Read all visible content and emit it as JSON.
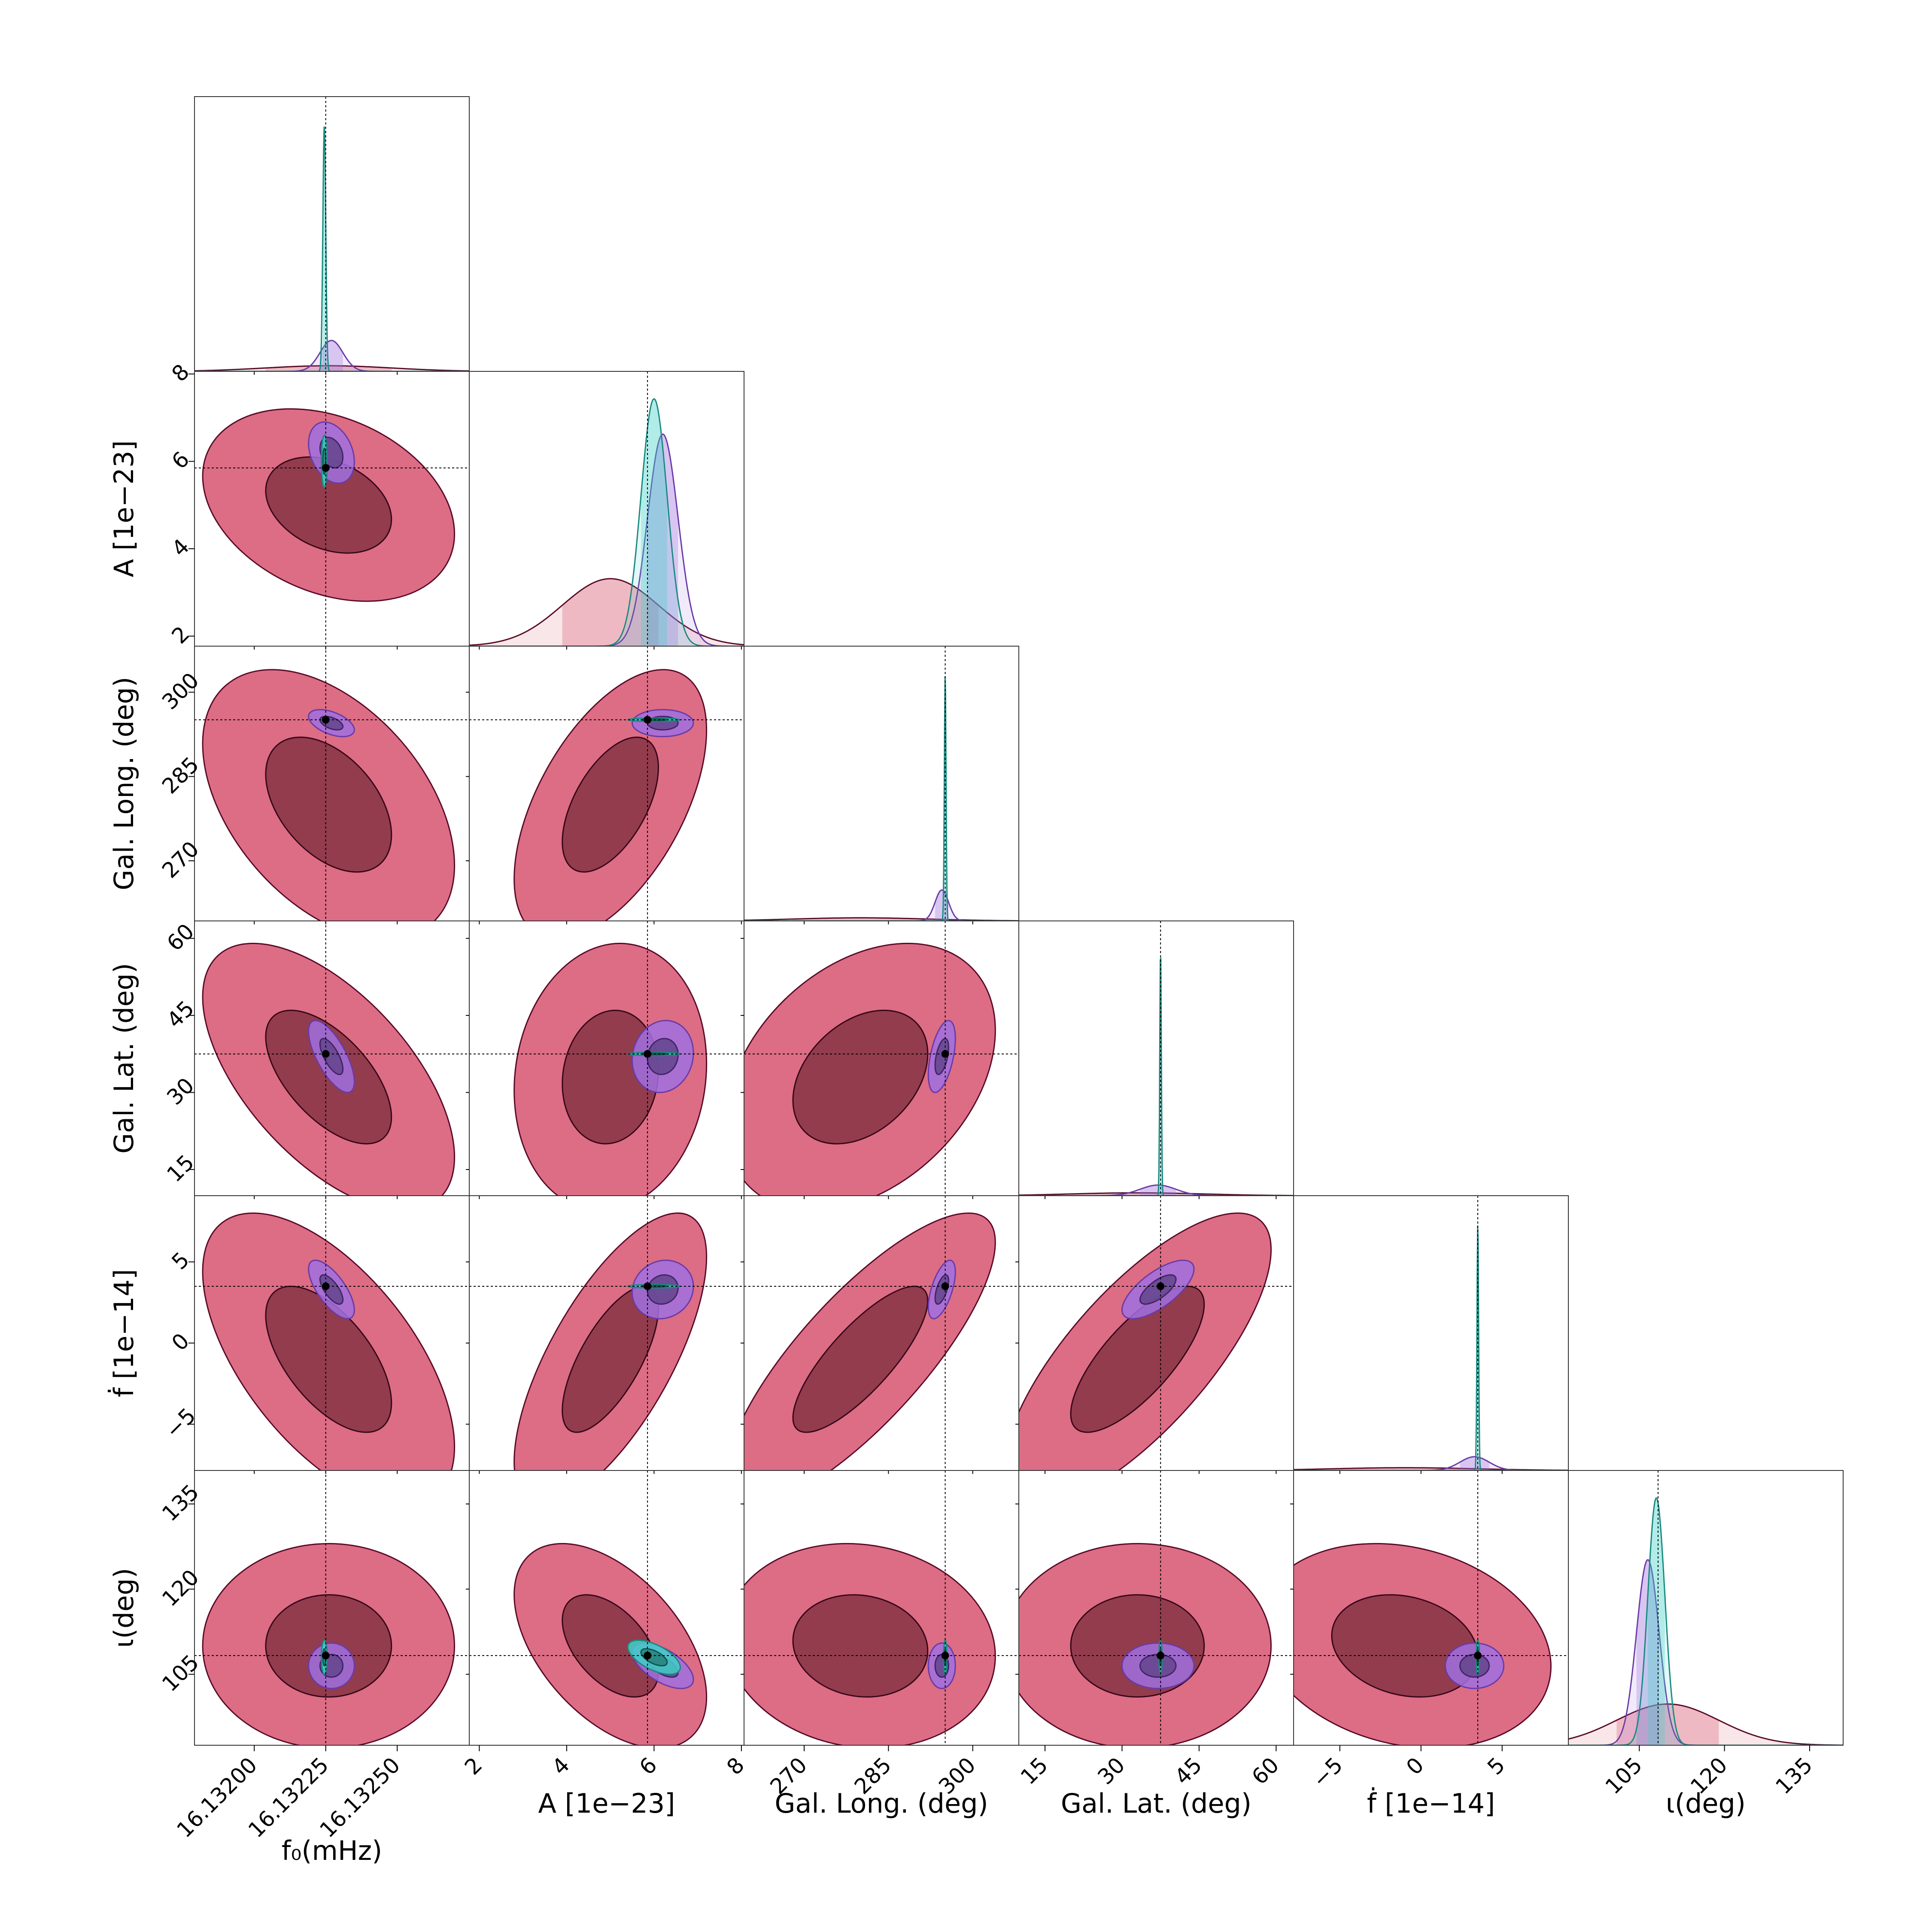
{
  "chart_data": {
    "type": "corner",
    "contour_levels": [
      0.393,
      0.865
    ],
    "parameters": [
      {
        "label": "f₀(mHz)",
        "lim": [
          16.131791,
          16.132752
        ],
        "ticks": [
          {
            "value": 16.132,
            "label": "16.13200"
          },
          16.13225,
          {
            "value": 16.1325,
            "label": "16.13250"
          }
        ],
        "truth": 16.13225
      },
      {
        "label": "A [1e−23]",
        "lim": [
          1.77,
          8.06
        ],
        "ticks": [
          2,
          4,
          6,
          8
        ],
        "truth": 5.85
      },
      {
        "label": "Gal. Long. (deg)",
        "lim": [
          259.3,
          308.2
        ],
        "ticks": [
          270,
          285,
          300
        ],
        "truth": 295.1
      },
      {
        "label": "Gal. Lat. (deg)",
        "lim": [
          9.9,
          63.4
        ],
        "ticks": [
          15,
          30,
          45,
          60
        ],
        "truth": 37.5
      },
      {
        "label": "ḟ [1e−14]",
        "lim": [
          -7.85,
          9.08
        ],
        "ticks": [
          {
            "value": -5,
            "label": "−5"
          },
          0,
          5
        ],
        "truth": 3.5
      },
      {
        "label": "ι(deg)",
        "lim": [
          92.5,
          140.9
        ],
        "ticks": [
          105,
          120,
          135
        ],
        "truth": 108.3
      }
    ],
    "series": [
      {
        "color": "#d6546e",
        "edgecolor": "#5a0a28",
        "mean": [
          16.13226,
          5.0,
          280,
          33,
          -1,
          110
        ],
        "sd": [
          0.00022,
          1.1,
          12,
          13,
          4.5,
          9
        ],
        "corr": [
          [
            1,
            -0.3,
            -0.45,
            -0.6,
            -0.6,
            0
          ],
          [
            -0.3,
            1,
            0.55,
            0.1,
            0.7,
            -0.5
          ],
          [
            -0.45,
            0.55,
            1,
            0.35,
            0.8,
            -0.1
          ],
          [
            -0.6,
            0.1,
            0.35,
            1,
            0.75,
            0
          ],
          [
            -0.6,
            0.7,
            0.8,
            0.75,
            1,
            -0.2
          ],
          [
            0,
            -0.5,
            -0.1,
            0,
            -0.2,
            1
          ]
        ]
      },
      {
        "color": "#a070e0",
        "edgecolor": "#6a3aa8",
        "mean": [
          16.13227,
          6.2,
          294.5,
          37,
          3.3,
          106.5
        ],
        "sd": [
          4e-05,
          0.35,
          1.2,
          3.5,
          0.9,
          2
        ],
        "corr": [
          [
            1,
            -0.3,
            -0.5,
            -0.7,
            -0.7,
            0
          ],
          [
            -0.3,
            1,
            0,
            0.1,
            0.1,
            -0.6
          ],
          [
            -0.5,
            0,
            1,
            0.5,
            0.6,
            0
          ],
          [
            -0.7,
            0.1,
            0.5,
            1,
            0.7,
            0
          ],
          [
            -0.7,
            0.1,
            0.6,
            0.7,
            1,
            0
          ],
          [
            0,
            -0.6,
            0,
            0,
            0,
            1
          ]
        ]
      },
      {
        "color": "#40d0c8",
        "edgecolor": "#1a8a80",
        "mean": [
          16.132245,
          6.0,
          295.1,
          37.5,
          3.5,
          108
        ],
        "sd": [
          5e-06,
          0.3,
          0.15,
          0.15,
          0.05,
          1.5
        ],
        "corr": [
          [
            1,
            0,
            0,
            0,
            0,
            0
          ],
          [
            0,
            1,
            0,
            0,
            0,
            -0.6
          ],
          [
            0,
            0,
            1,
            0,
            0,
            0
          ],
          [
            0,
            0,
            0,
            1,
            0,
            0
          ],
          [
            0,
            0,
            0,
            0,
            1,
            0
          ],
          [
            0,
            -0.6,
            0,
            0,
            0,
            1
          ]
        ]
      }
    ]
  }
}
